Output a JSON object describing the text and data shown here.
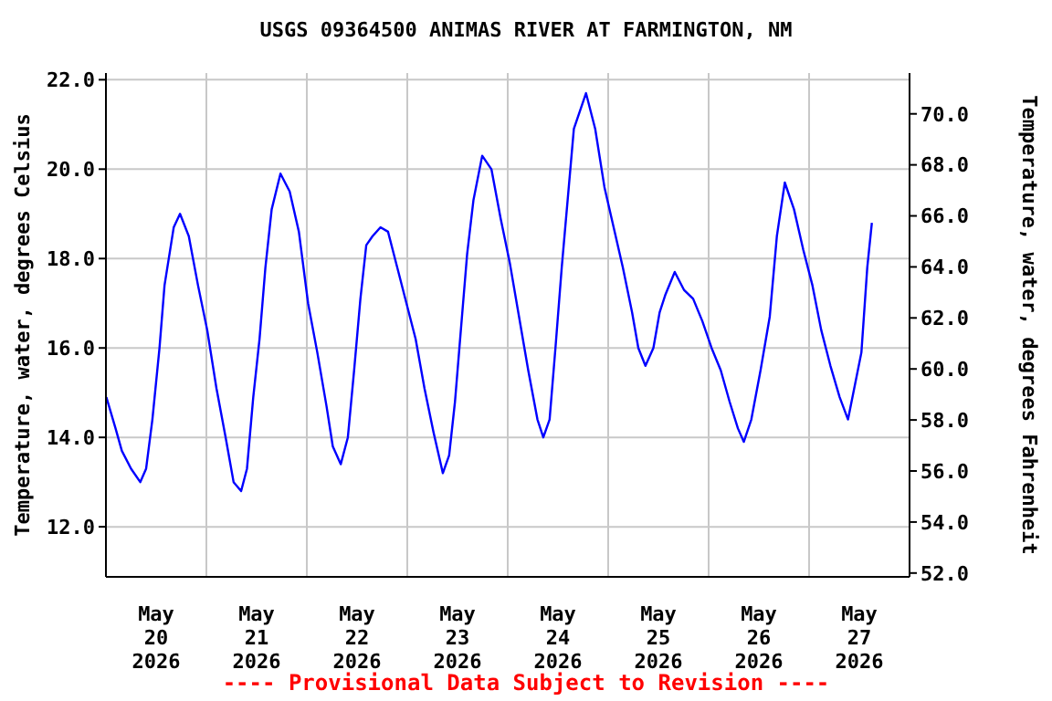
{
  "chart_data": {
    "type": "line",
    "title": "USGS 09364500 ANIMAS RIVER AT FARMINGTON, NM",
    "ylabel": "Temperature, water, degrees Celsius",
    "y2label": "Temperature, water, degrees Fahrenheit",
    "annotations": [
      "---- Provisional Data Subject to Revision ----"
    ],
    "x": [
      "2026-05-20T00:06",
      "2026-05-20T02:18",
      "2026-05-20T03:48",
      "2026-05-20T06:00",
      "2026-05-20T08:12",
      "2026-05-20T09:36",
      "2026-05-20T11:06",
      "2026-05-20T12:48",
      "2026-05-20T14:00",
      "2026-05-20T16:12",
      "2026-05-20T17:42",
      "2026-05-20T19:48",
      "2026-05-20T22:00",
      "2026-05-21T00:12",
      "2026-05-21T02:24",
      "2026-05-21T04:36",
      "2026-05-21T06:30",
      "2026-05-21T08:18",
      "2026-05-21T09:42",
      "2026-05-21T11:12",
      "2026-05-21T12:42",
      "2026-05-21T14:06",
      "2026-05-21T15:36",
      "2026-05-21T17:42",
      "2026-05-21T19:54",
      "2026-05-21T22:06",
      "2026-05-22T00:18",
      "2026-05-22T02:30",
      "2026-05-22T04:42",
      "2026-05-22T06:12",
      "2026-05-22T08:06",
      "2026-05-22T09:48",
      "2026-05-22T11:18",
      "2026-05-22T12:48",
      "2026-05-22T14:12",
      "2026-05-22T15:42",
      "2026-05-22T17:36",
      "2026-05-22T19:24",
      "2026-05-22T21:36",
      "2026-05-22T23:48",
      "2026-05-23T02:00",
      "2026-05-23T04:06",
      "2026-05-23T06:18",
      "2026-05-23T08:30",
      "2026-05-23T10:00",
      "2026-05-23T11:24",
      "2026-05-23T12:48",
      "2026-05-23T14:18",
      "2026-05-23T15:48",
      "2026-05-23T17:54",
      "2026-05-23T20:06",
      "2026-05-23T22:18",
      "2026-05-24T00:30",
      "2026-05-24T02:42",
      "2026-05-24T04:54",
      "2026-05-24T07:06",
      "2026-05-24T08:30",
      "2026-05-24T10:00",
      "2026-05-24T11:24",
      "2026-05-24T12:54",
      "2026-05-24T14:24",
      "2026-05-24T15:48",
      "2026-05-24T18:42",
      "2026-05-24T20:54",
      "2026-05-24T23:06",
      "2026-05-25T01:18",
      "2026-05-25T03:30",
      "2026-05-25T05:42",
      "2026-05-25T07:12",
      "2026-05-25T08:54",
      "2026-05-25T10:48",
      "2026-05-25T12:18",
      "2026-05-25T13:42",
      "2026-05-25T15:54",
      "2026-05-25T18:06",
      "2026-05-25T20:18",
      "2026-05-25T22:30",
      "2026-05-26T00:42",
      "2026-05-26T02:54",
      "2026-05-26T05:00",
      "2026-05-26T07:00",
      "2026-05-26T08:24",
      "2026-05-26T10:12",
      "2026-05-26T12:24",
      "2026-05-26T14:36",
      "2026-05-26T16:18",
      "2026-05-26T18:12",
      "2026-05-26T20:24",
      "2026-05-26T22:36",
      "2026-05-27T00:48",
      "2026-05-27T02:54",
      "2026-05-27T05:06",
      "2026-05-27T07:18",
      "2026-05-27T09:18",
      "2026-05-27T11:00",
      "2026-05-27T12:30",
      "2026-05-27T13:54",
      "2026-05-27T15:00"
    ],
    "values": [
      14.9,
      14.2,
      13.7,
      13.3,
      13.0,
      13.3,
      14.4,
      16.0,
      17.4,
      18.7,
      19.0,
      18.5,
      17.4,
      16.4,
      15.1,
      14.0,
      13.0,
      12.8,
      13.3,
      14.9,
      16.2,
      17.8,
      19.1,
      19.9,
      19.5,
      18.6,
      17.0,
      15.9,
      14.7,
      13.8,
      13.4,
      14.0,
      15.5,
      17.1,
      18.3,
      18.5,
      18.7,
      18.6,
      17.8,
      17.0,
      16.2,
      15.1,
      14.1,
      13.2,
      13.6,
      14.8,
      16.4,
      18.1,
      19.3,
      20.3,
      20.0,
      18.9,
      17.9,
      16.7,
      15.5,
      14.4,
      14.0,
      14.4,
      16.0,
      17.8,
      19.4,
      20.9,
      21.7,
      20.9,
      19.6,
      18.7,
      17.8,
      16.8,
      16.0,
      15.6,
      16.0,
      16.8,
      17.2,
      17.7,
      17.3,
      17.1,
      16.6,
      16.0,
      15.5,
      14.8,
      14.2,
      13.9,
      14.4,
      15.5,
      16.7,
      18.5,
      19.7,
      19.1,
      18.2,
      17.4,
      16.4,
      15.6,
      14.9,
      14.4,
      15.2,
      15.9,
      17.8,
      18.8
    ],
    "color": "#0000ff",
    "marker": "none",
    "grid": true,
    "xlim": [
      "2026-05-20T00:00",
      "2026-05-28T00:00"
    ],
    "xticks": [
      {
        "value": "2026-05-20T12:00",
        "label": "May 20 2026"
      },
      {
        "value": "2026-05-21T00:00",
        "label": null
      },
      {
        "value": "2026-05-21T12:00",
        "label": "May 21 2026"
      },
      {
        "value": "2026-05-22T00:00",
        "label": null
      },
      {
        "value": "2026-05-22T12:00",
        "label": "May 22 2026"
      },
      {
        "value": "2026-05-23T00:00",
        "label": null
      },
      {
        "value": "2026-05-23T12:00",
        "label": "May 23 2026"
      },
      {
        "value": "2026-05-24T00:00",
        "label": null
      },
      {
        "value": "2026-05-24T12:00",
        "label": "May 24 2026"
      },
      {
        "value": "2026-05-25T00:00",
        "label": null
      },
      {
        "value": "2026-05-25T12:00",
        "label": "May 25 2026"
      },
      {
        "value": "2026-05-26T00:00",
        "label": null
      },
      {
        "value": "2026-05-26T12:00",
        "label": "May 26 2026"
      },
      {
        "value": "2026-05-27T00:00",
        "label": null
      },
      {
        "value": "2026-05-27T12:00",
        "label": "May 27 2026"
      }
    ],
    "ylim": [
      10.88,
      22.15
    ],
    "yticks": [
      {
        "value": 12,
        "label": "12.0"
      },
      {
        "value": 14,
        "label": "14.0"
      },
      {
        "value": 16,
        "label": "16.0"
      },
      {
        "value": 18,
        "label": "18.0"
      },
      {
        "value": 20,
        "label": "20.0"
      },
      {
        "value": 22,
        "label": "22.0"
      }
    ],
    "y2lim": [
      51.85,
      71.6
    ],
    "y2ticks": [
      {
        "value": 52,
        "label": "52.0"
      },
      {
        "value": 54,
        "label": "54.0"
      },
      {
        "value": 56,
        "label": "56.0"
      },
      {
        "value": 58,
        "label": "58.0"
      },
      {
        "value": 60,
        "label": "60.0"
      },
      {
        "value": 62,
        "label": "62.0"
      },
      {
        "value": 64,
        "label": "64.0"
      },
      {
        "value": 66,
        "label": "66.0"
      },
      {
        "value": 68,
        "label": "68.0"
      },
      {
        "value": 70,
        "label": "70.0"
      }
    ]
  }
}
